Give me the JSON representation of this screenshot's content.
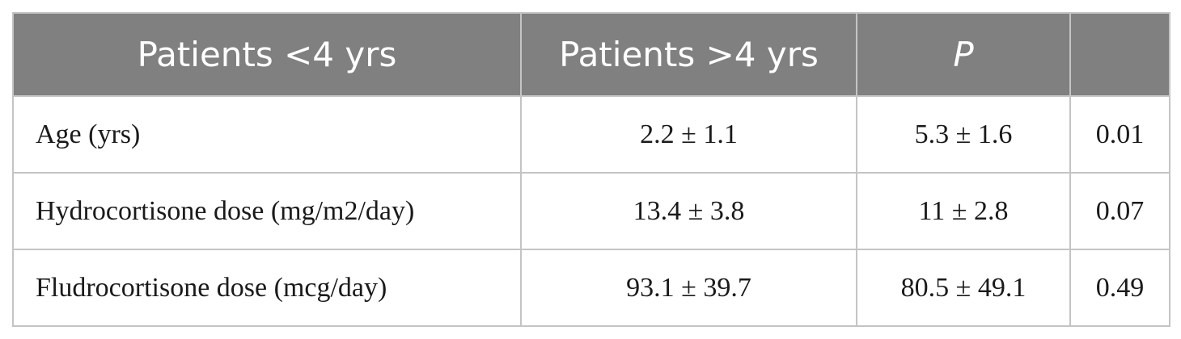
{
  "table": {
    "header": [
      "Patients <4 yrs",
      "Patients >4 yrs",
      "P"
    ],
    "rows": [
      [
        "Age (yrs)",
        "2.2 ± 1.1",
        "5.3 ± 1.6",
        "0.01"
      ],
      [
        "Hydrocortisone dose (mg/m2/day)",
        "13.4 ± 3.8",
        "11 ± 2.8",
        "0.07"
      ],
      [
        "Fludrocortisone dose (mcg/day)",
        "93.1 ± 39.7",
        "80.5 ± 49.1",
        "0.49"
      ]
    ]
  }
}
